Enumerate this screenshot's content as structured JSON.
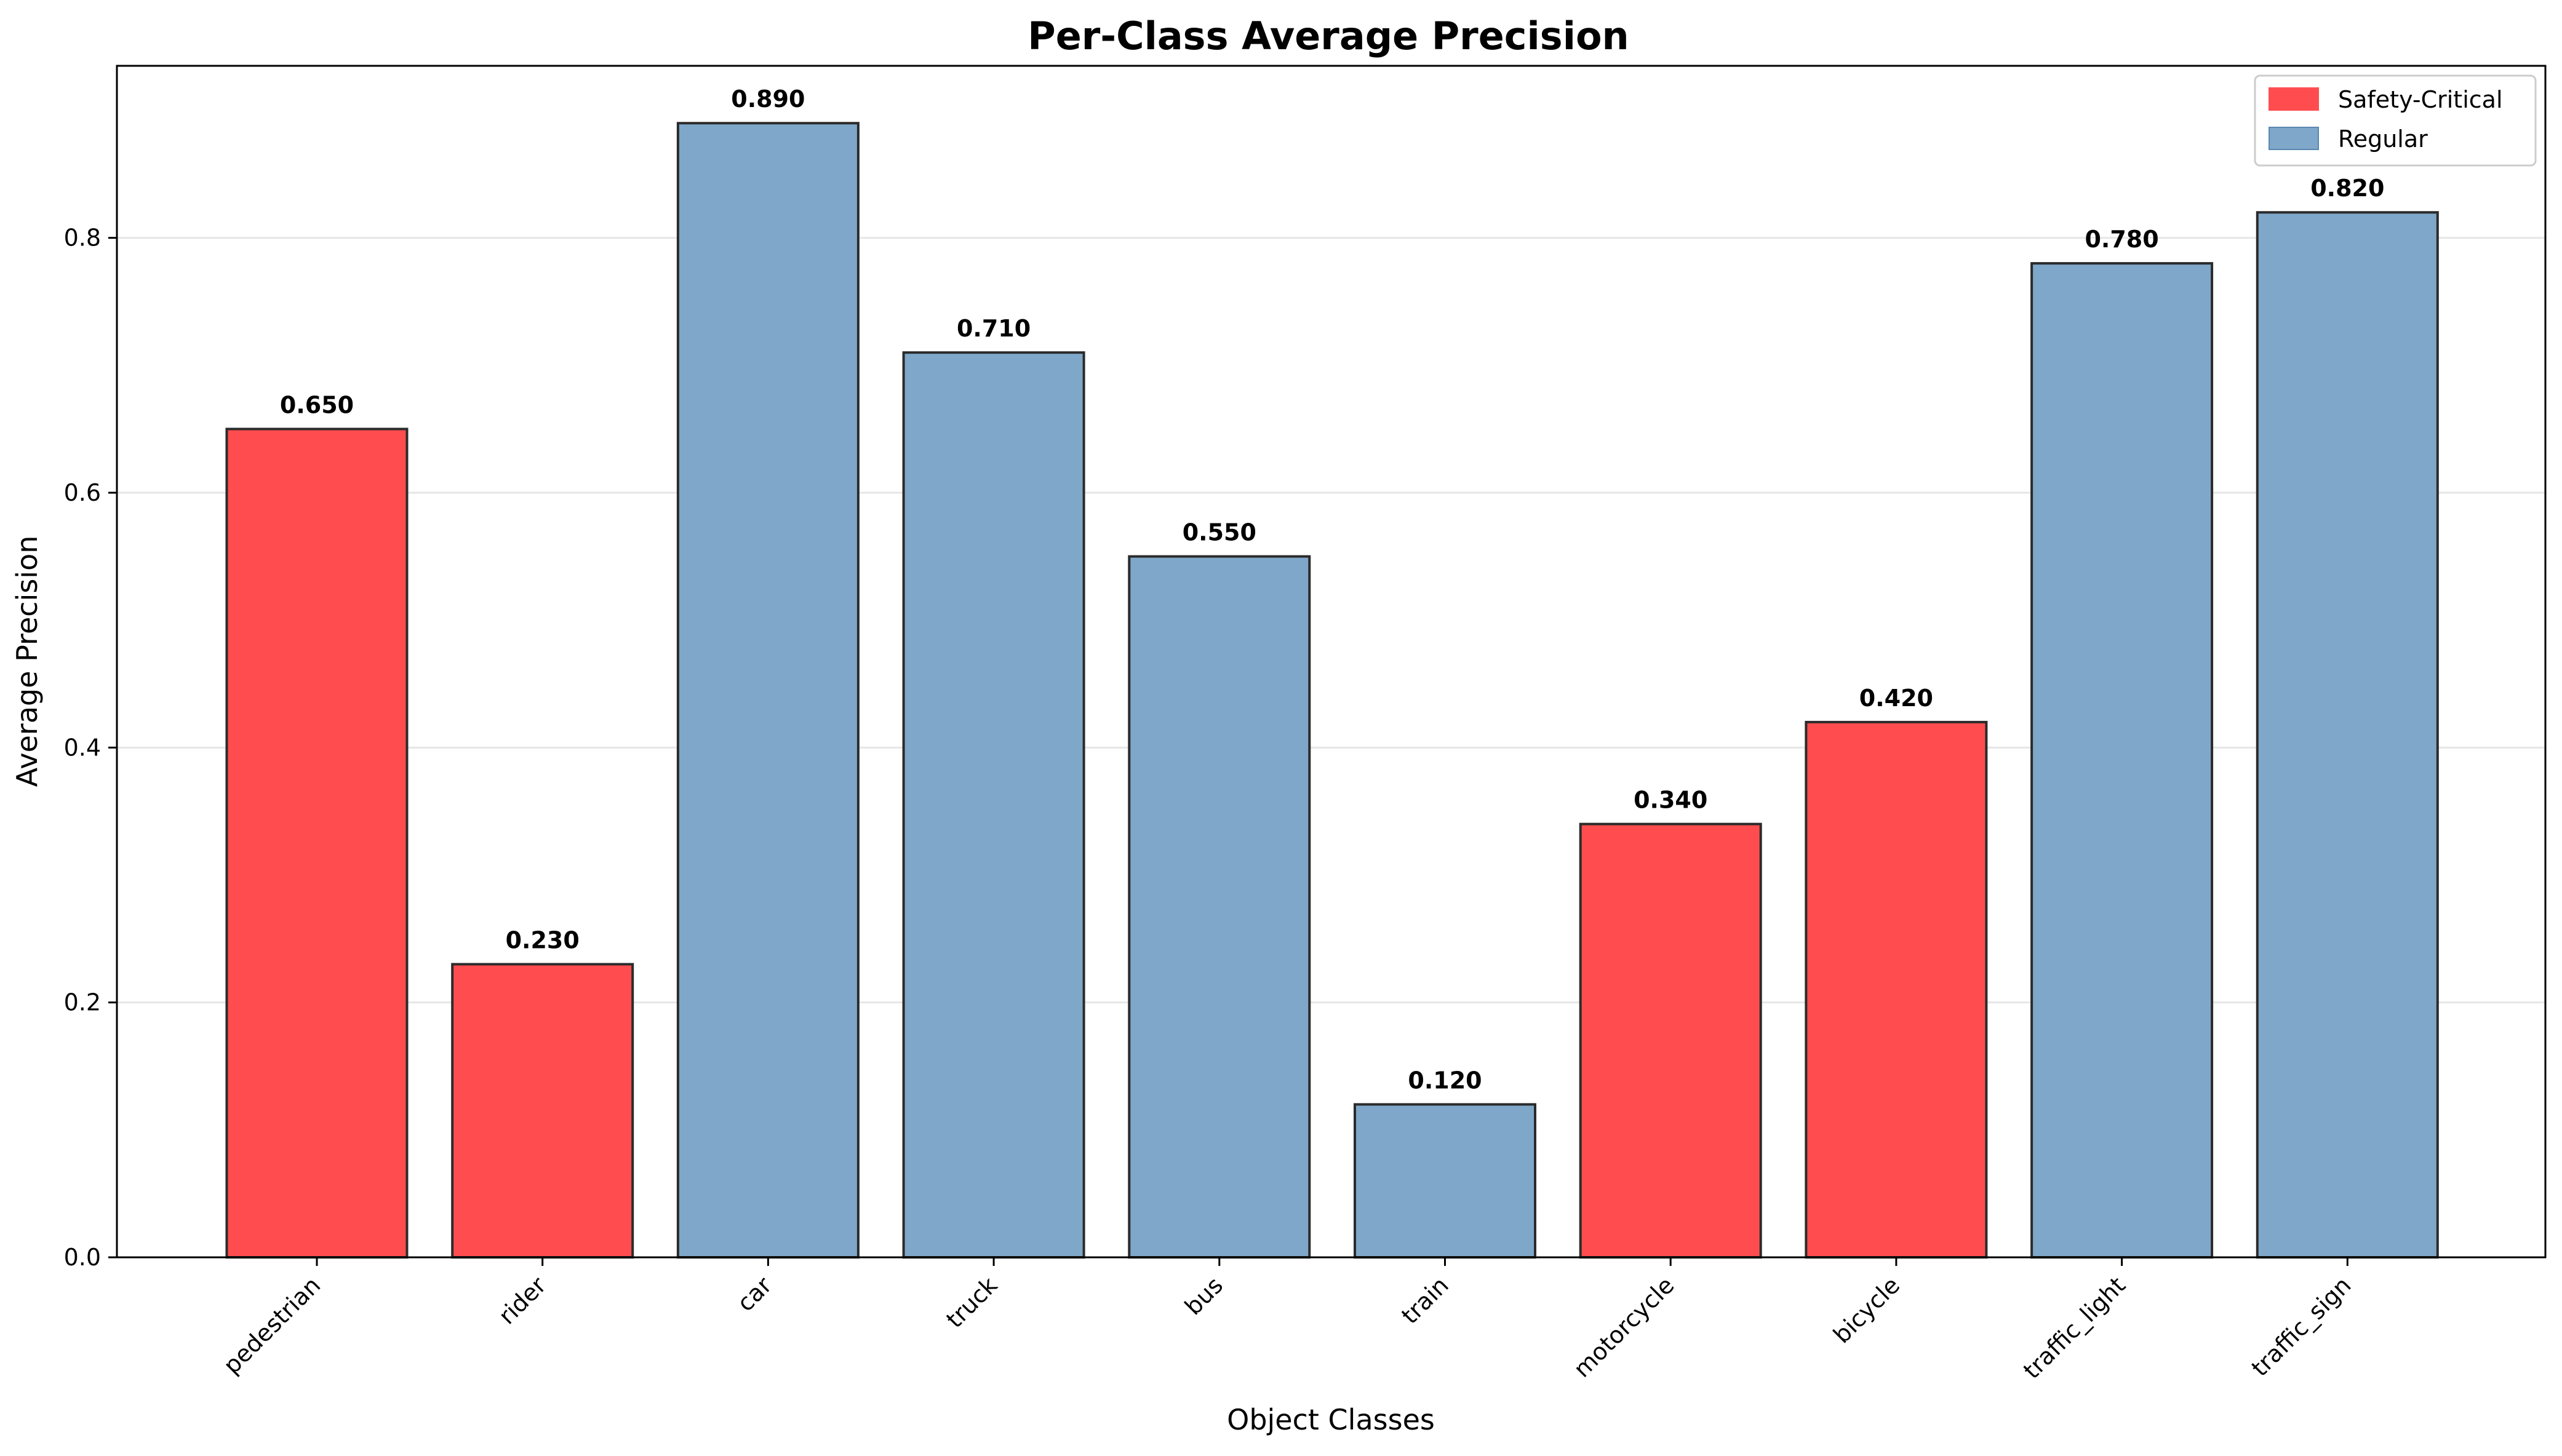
{
  "chart_data": {
    "type": "bar",
    "title": "Per-Class Average Precision",
    "xlabel": "Object Classes",
    "ylabel": "Average Precision",
    "categories": [
      "pedestrian",
      "rider",
      "car",
      "truck",
      "bus",
      "train",
      "motorcycle",
      "bicycle",
      "traffic_light",
      "traffic_sign"
    ],
    "values": [
      0.65,
      0.23,
      0.89,
      0.71,
      0.55,
      0.12,
      0.34,
      0.42,
      0.78,
      0.82
    ],
    "value_labels": [
      "0.650",
      "0.230",
      "0.890",
      "0.710",
      "0.550",
      "0.120",
      "0.340",
      "0.420",
      "0.780",
      "0.820"
    ],
    "groups": [
      "Safety-Critical",
      "Safety-Critical",
      "Regular",
      "Regular",
      "Regular",
      "Regular",
      "Safety-Critical",
      "Safety-Critical",
      "Regular",
      "Regular"
    ],
    "legend": [
      {
        "name": "Safety-Critical",
        "color": "#ff4d4f"
      },
      {
        "name": "Regular",
        "color": "#7ea7c9"
      }
    ],
    "legend_position": "top-right",
    "ylim": [
      0,
      0.935
    ],
    "yticks": [
      0.0,
      0.2,
      0.4,
      0.6,
      0.8
    ],
    "ytick_labels": [
      "0.0",
      "0.2",
      "0.4",
      "0.6",
      "0.8"
    ],
    "grid": "y",
    "colors": {
      "safety_critical": "#ff4d4f",
      "regular": "#7ea7c9",
      "edge": "#2b2b2b",
      "grid": "#e6e6e6"
    }
  }
}
